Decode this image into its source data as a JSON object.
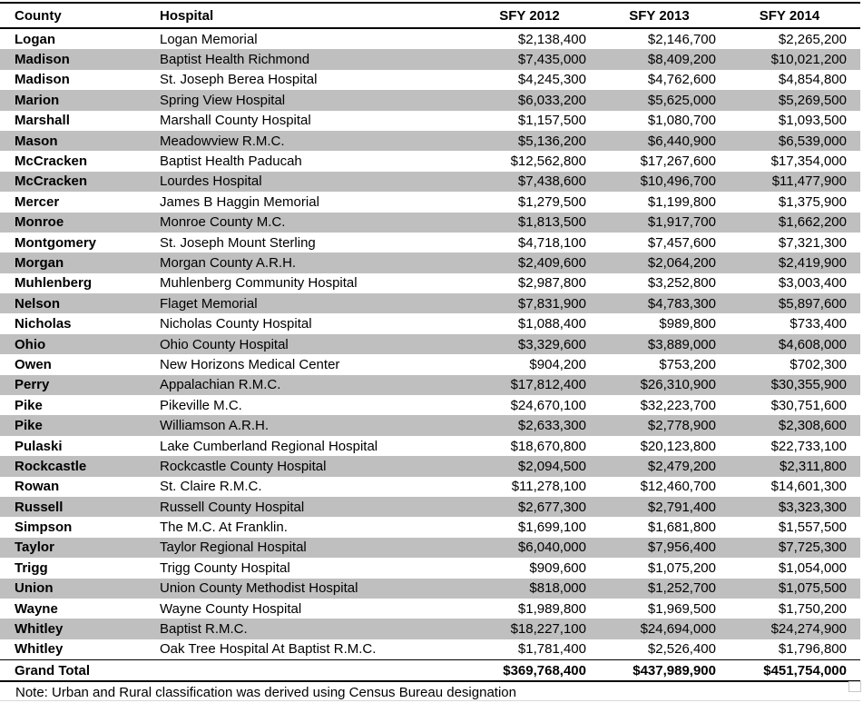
{
  "colors": {
    "stripe": "#bfbfbf",
    "border": "#000000",
    "faint_bottom_line": "#d8d8d8",
    "handle_border": "#c9c9c9",
    "text": "#000000"
  },
  "table": {
    "columns": [
      "County",
      "Hospital",
      "SFY 2012",
      "SFY 2013",
      "SFY 2014"
    ],
    "rows": [
      {
        "county": "Logan",
        "hospital": "Logan Memorial",
        "values": [
          "$2,138,400",
          "$2,146,700",
          "$2,265,200"
        ]
      },
      {
        "county": "Madison",
        "hospital": "Baptist Health Richmond",
        "values": [
          "$7,435,000",
          "$8,409,200",
          "$10,021,200"
        ]
      },
      {
        "county": "Madison",
        "hospital": "St. Joseph Berea Hospital",
        "values": [
          "$4,245,300",
          "$4,762,600",
          "$4,854,800"
        ]
      },
      {
        "county": "Marion",
        "hospital": "Spring View Hospital",
        "values": [
          "$6,033,200",
          "$5,625,000",
          "$5,269,500"
        ]
      },
      {
        "county": "Marshall",
        "hospital": "Marshall County Hospital",
        "values": [
          "$1,157,500",
          "$1,080,700",
          "$1,093,500"
        ]
      },
      {
        "county": "Mason",
        "hospital": "Meadowview R.M.C.",
        "values": [
          "$5,136,200",
          "$6,440,900",
          "$6,539,000"
        ]
      },
      {
        "county": "McCracken",
        "hospital": "Baptist Health Paducah",
        "values": [
          "$12,562,800",
          "$17,267,600",
          "$17,354,000"
        ]
      },
      {
        "county": "McCracken",
        "hospital": "Lourdes Hospital",
        "values": [
          "$7,438,600",
          "$10,496,700",
          "$11,477,900"
        ]
      },
      {
        "county": "Mercer",
        "hospital": "James B Haggin Memorial",
        "values": [
          "$1,279,500",
          "$1,199,800",
          "$1,375,900"
        ]
      },
      {
        "county": "Monroe",
        "hospital": "Monroe County M.C.",
        "values": [
          "$1,813,500",
          "$1,917,700",
          "$1,662,200"
        ]
      },
      {
        "county": "Montgomery",
        "hospital": "St. Joseph Mount Sterling",
        "values": [
          "$4,718,100",
          "$7,457,600",
          "$7,321,300"
        ]
      },
      {
        "county": "Morgan",
        "hospital": "Morgan County A.R.H.",
        "values": [
          "$2,409,600",
          "$2,064,200",
          "$2,419,900"
        ]
      },
      {
        "county": "Muhlenberg",
        "hospital": "Muhlenberg Community Hospital",
        "values": [
          "$2,987,800",
          "$3,252,800",
          "$3,003,400"
        ]
      },
      {
        "county": "Nelson",
        "hospital": "Flaget Memorial",
        "values": [
          "$7,831,900",
          "$4,783,300",
          "$5,897,600"
        ]
      },
      {
        "county": "Nicholas",
        "hospital": "Nicholas County Hospital",
        "values": [
          "$1,088,400",
          "$989,800",
          "$733,400"
        ]
      },
      {
        "county": "Ohio",
        "hospital": "Ohio County Hospital",
        "values": [
          "$3,329,600",
          "$3,889,000",
          "$4,608,000"
        ]
      },
      {
        "county": "Owen",
        "hospital": "New Horizons Medical Center",
        "values": [
          "$904,200",
          "$753,200",
          "$702,300"
        ]
      },
      {
        "county": "Perry",
        "hospital": "Appalachian R.M.C.",
        "values": [
          "$17,812,400",
          "$26,310,900",
          "$30,355,900"
        ]
      },
      {
        "county": "Pike",
        "hospital": "Pikeville M.C.",
        "values": [
          "$24,670,100",
          "$32,223,700",
          "$30,751,600"
        ]
      },
      {
        "county": "Pike",
        "hospital": "Williamson A.R.H.",
        "values": [
          "$2,633,300",
          "$2,778,900",
          "$2,308,600"
        ]
      },
      {
        "county": "Pulaski",
        "hospital": "Lake Cumberland Regional Hospital",
        "values": [
          "$18,670,800",
          "$20,123,800",
          "$22,733,100"
        ]
      },
      {
        "county": "Rockcastle",
        "hospital": "Rockcastle County Hospital",
        "values": [
          "$2,094,500",
          "$2,479,200",
          "$2,311,800"
        ]
      },
      {
        "county": "Rowan",
        "hospital": "St. Claire R.M.C.",
        "values": [
          "$11,278,100",
          "$12,460,700",
          "$14,601,300"
        ]
      },
      {
        "county": "Russell",
        "hospital": "Russell County Hospital",
        "values": [
          "$2,677,300",
          "$2,791,400",
          "$3,323,300"
        ]
      },
      {
        "county": "Simpson",
        "hospital": "The M.C. At Franklin.",
        "values": [
          "$1,699,100",
          "$1,681,800",
          "$1,557,500"
        ]
      },
      {
        "county": "Taylor",
        "hospital": "Taylor Regional Hospital",
        "values": [
          "$6,040,000",
          "$7,956,400",
          "$7,725,300"
        ]
      },
      {
        "county": "Trigg",
        "hospital": "Trigg County Hospital",
        "values": [
          "$909,600",
          "$1,075,200",
          "$1,054,000"
        ]
      },
      {
        "county": "Union",
        "hospital": "Union County Methodist Hospital",
        "values": [
          "$818,000",
          "$1,252,700",
          "$1,075,500"
        ]
      },
      {
        "county": "Wayne",
        "hospital": "Wayne County Hospital",
        "values": [
          "$1,989,800",
          "$1,969,500",
          "$1,750,200"
        ]
      },
      {
        "county": "Whitley",
        "hospital": "Baptist R.M.C.",
        "values": [
          "$18,227,100",
          "$24,694,000",
          "$24,274,900"
        ]
      },
      {
        "county": "Whitley",
        "hospital": "Oak Tree Hospital At Baptist R.M.C.",
        "values": [
          "$1,781,400",
          "$2,526,400",
          "$1,796,800"
        ]
      }
    ],
    "grand_total": {
      "label": "Grand Total",
      "values": [
        "$369,768,400",
        "$437,989,900",
        "$451,754,000"
      ]
    }
  },
  "note": "Note: Urban and Rural classification was derived using Census Bureau designation"
}
